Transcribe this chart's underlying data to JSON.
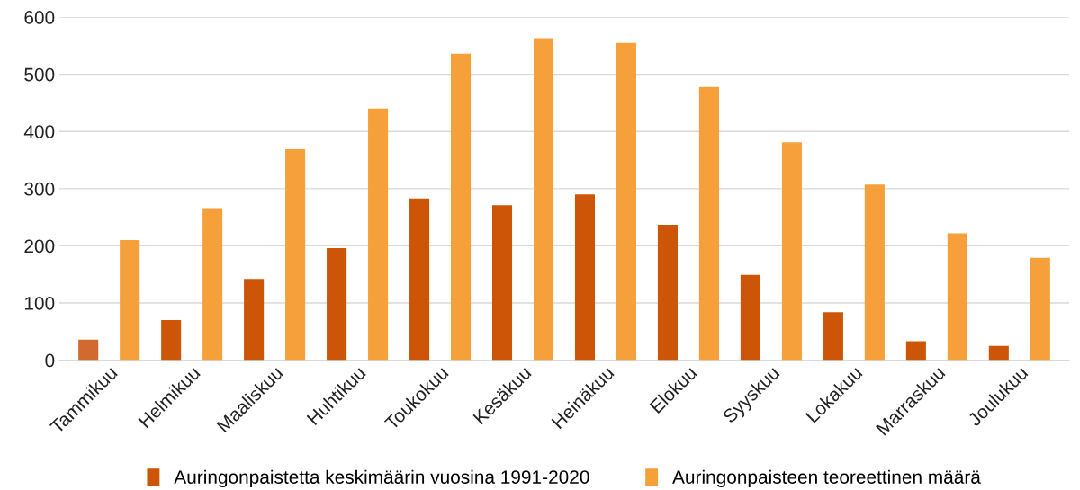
{
  "chart_data": {
    "type": "bar",
    "categories": [
      "Tammikuu",
      "Helmikuu",
      "Maaliskuu",
      "Huhtikuu",
      "Toukokuu",
      "Kesäkuu",
      "Heinäkuu",
      "Elokuu",
      "Syyskuu",
      "Lokakuu",
      "Marraskuu",
      "Joulukuu"
    ],
    "series": [
      {
        "name": "Auringonpaistetta keskimäärin vuosina 1991-2020",
        "color": "#cc5508",
        "colors": [
          "#d2692e",
          "#cc5508",
          "#cc5508",
          "#cc5508",
          "#cc5508",
          "#cc5508",
          "#cc5508",
          "#cc5508",
          "#cc5508",
          "#cc5508",
          "#cc5508",
          "#cc5508"
        ],
        "values": [
          36,
          70,
          142,
          196,
          283,
          271,
          290,
          237,
          149,
          84,
          33,
          25
        ]
      },
      {
        "name": "Auringonpaisteen teoreettinen määrä",
        "color": "#f5a03a",
        "values": [
          210,
          266,
          369,
          440,
          536,
          563,
          555,
          478,
          381,
          307,
          222,
          179
        ]
      }
    ],
    "ylim": [
      0,
      600
    ],
    "yticks": [
      0,
      100,
      200,
      300,
      400,
      500,
      600
    ],
    "grid": "y",
    "legend": "bottom"
  }
}
